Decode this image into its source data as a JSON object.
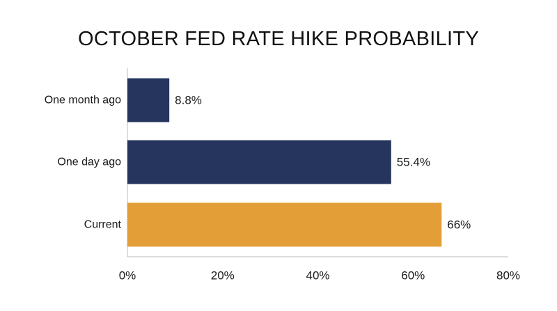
{
  "chart_data": {
    "type": "bar",
    "orientation": "horizontal",
    "title": "OCTOBER FED RATE HIKE PROBABILITY",
    "categories": [
      "One month ago",
      "One day ago",
      "Current"
    ],
    "values": [
      8.8,
      55.4,
      66
    ],
    "data_labels": [
      "8.8%",
      "55.4%",
      "66%"
    ],
    "xlim": [
      0,
      80
    ],
    "x_ticks": [
      0,
      20,
      40,
      60,
      80
    ],
    "x_tick_labels": [
      "0%",
      "20%",
      "40%",
      "60%",
      "80%"
    ],
    "xlabel": "",
    "ylabel": "",
    "grid": false,
    "legend": "none",
    "colors": [
      "#25355e",
      "#25355e",
      "#e39e37"
    ]
  }
}
